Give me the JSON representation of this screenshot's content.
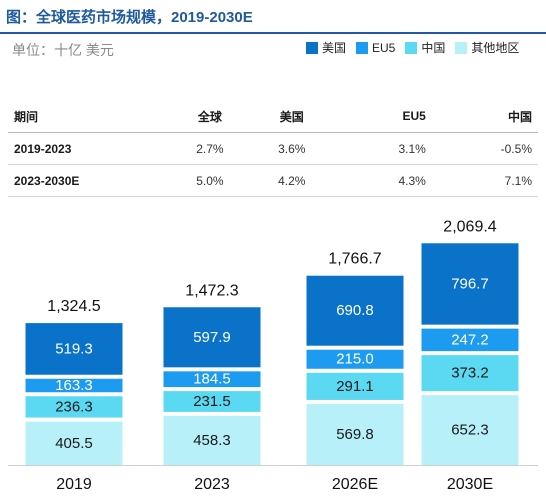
{
  "header": {
    "title": "图：全球医药市场规模，2019-2030E",
    "unit": "单位：十亿 美元"
  },
  "growth_table": {
    "columns": [
      "期间",
      "全球",
      "美国",
      "EU5",
      "中国"
    ],
    "rows": [
      [
        "2019-2023",
        "2.7%",
        "3.6%",
        "3.1%",
        "-0.5%"
      ],
      [
        "2023-2030E",
        "5.0%",
        "4.2%",
        "4.3%",
        "7.1%"
      ]
    ]
  },
  "colors": {
    "美国": "#0a72c8",
    "EU5": "#1d9bf0",
    "中国": "#5cd9f2",
    "其他地区": "#b8f0fa"
  },
  "chart_data": {
    "type": "bar",
    "stacked": true,
    "categories": [
      "2019",
      "2023",
      "2026E",
      "2030E"
    ],
    "series": [
      {
        "name": "其他地区",
        "values": [
          405.5,
          458.3,
          569.8,
          652.3
        ]
      },
      {
        "name": "中国",
        "values": [
          236.3,
          231.5,
          291.1,
          373.2
        ]
      },
      {
        "name": "EU5",
        "values": [
          163.3,
          184.5,
          215.0,
          247.2
        ]
      },
      {
        "name": "美国",
        "values": [
          519.3,
          597.9,
          690.8,
          796.7
        ]
      }
    ],
    "value_labels": [
      [
        "405.5",
        "458.3",
        "569.8",
        "652.3"
      ],
      [
        "236.3",
        "231.5",
        "291.1",
        "373.2"
      ],
      [
        "163.3",
        "184.5",
        "215.0",
        "247.2"
      ],
      [
        "519.3",
        "597.9",
        "690.8",
        "796.7"
      ]
    ],
    "totals": [
      "1,324.5",
      "1,472.3",
      "1,766.7",
      "2,069.4"
    ],
    "legend": {
      "position": "top-right",
      "entries": [
        "美国",
        "EU5",
        "中国",
        "其他地区"
      ]
    },
    "ylim": [
      0,
      2100
    ],
    "grid": false
  }
}
